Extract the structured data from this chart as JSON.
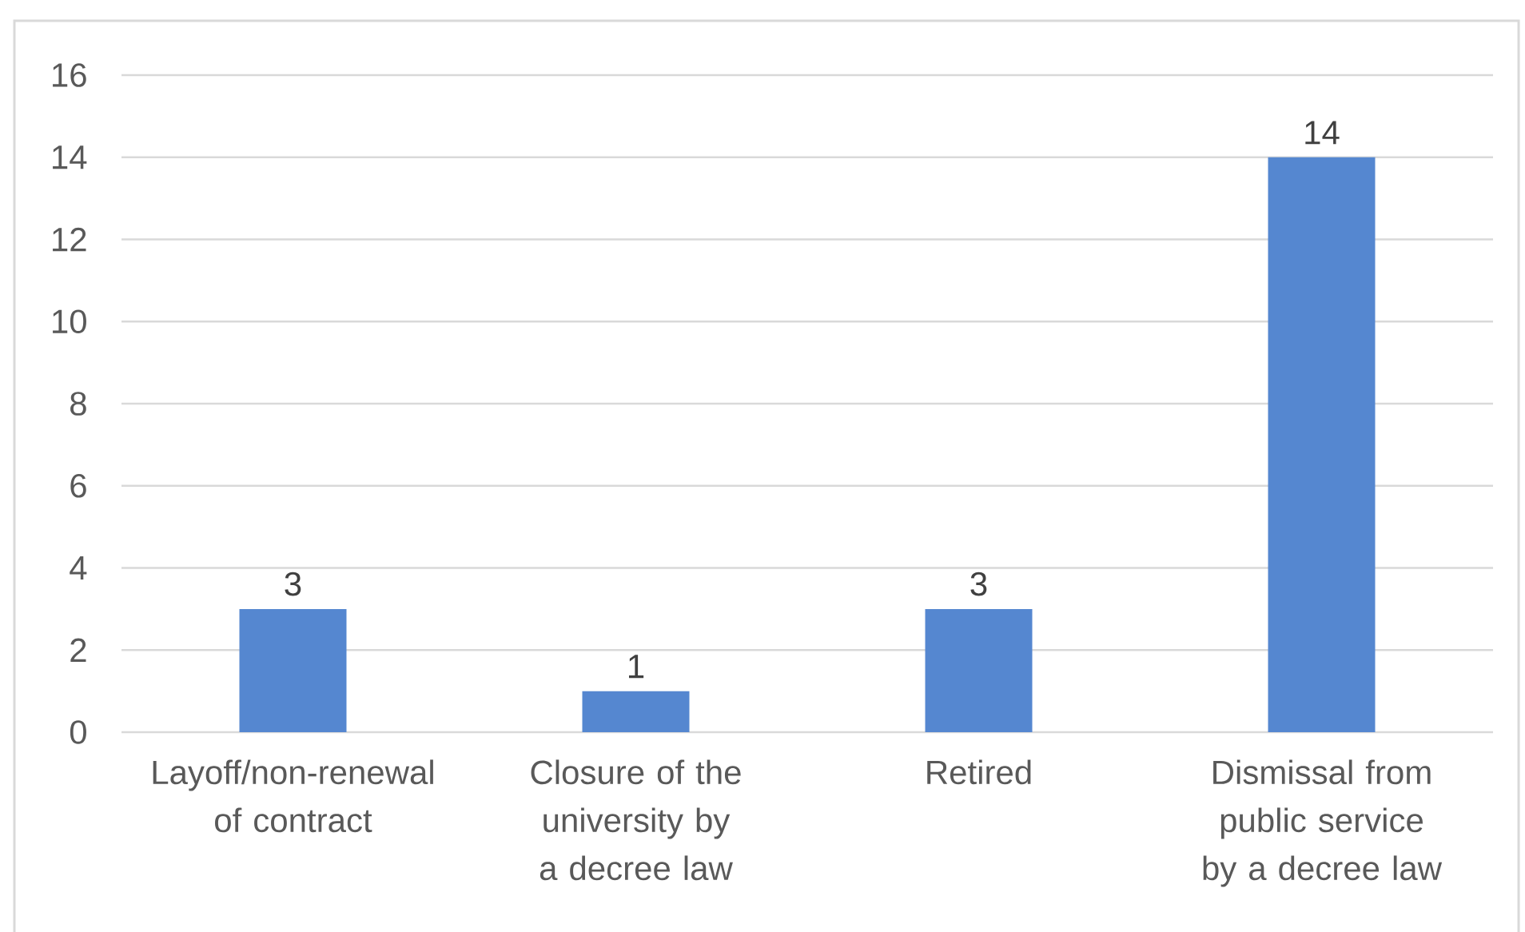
{
  "chart_data": {
    "type": "bar",
    "categories": [
      "Layoff/non-renewal of contract",
      "Closure of the university by a decree law",
      "Retired",
      "Dismissal from public service by a decree law"
    ],
    "values": [
      3,
      1,
      3,
      14
    ],
    "color": "#5587d0",
    "ylim": [
      0,
      16
    ],
    "yticks": [
      0,
      2,
      4,
      6,
      8,
      10,
      12,
      14,
      16
    ],
    "grid": "y",
    "data_labels": true
  }
}
